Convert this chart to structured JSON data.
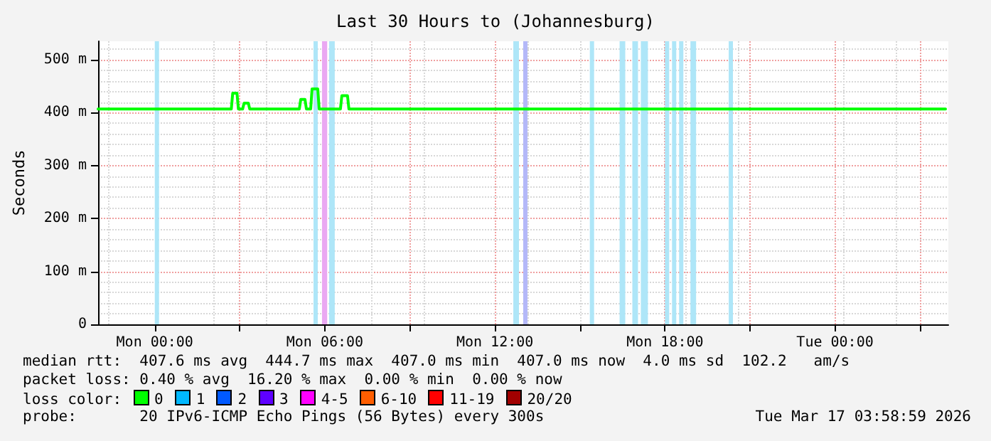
{
  "chart_data": {
    "type": "line",
    "title": "Last 30 Hours to (Johannesburg)",
    "ylabel": "Seconds",
    "xlim": [
      "2026-03-15T22:00",
      "2026-03-17T04:00"
    ],
    "xticks": [
      {
        "value": "2026-03-16T00:00",
        "label": "Mon 00:00"
      },
      {
        "value": "2026-03-16T03:00",
        "label": null
      },
      {
        "value": "2026-03-16T06:00",
        "label": "Mon 06:00"
      },
      {
        "value": "2026-03-16T09:00",
        "label": null
      },
      {
        "value": "2026-03-16T12:00",
        "label": "Mon 12:00"
      },
      {
        "value": "2026-03-16T15:00",
        "label": null
      },
      {
        "value": "2026-03-16T18:00",
        "label": "Mon 18:00"
      },
      {
        "value": "2026-03-16T21:00",
        "label": null
      },
      {
        "value": "2026-03-17T00:00",
        "label": "Tue 00:00"
      },
      {
        "value": "2026-03-17T03:00",
        "label": null
      }
    ],
    "ylim": [
      0,
      535
    ],
    "yticks": [
      0,
      {
        "value": 100,
        "label": "100 m"
      },
      {
        "value": 200,
        "label": "200 m"
      },
      {
        "value": 300,
        "label": "300 m"
      },
      {
        "value": 400,
        "label": "400 m"
      },
      {
        "value": 500,
        "label": "500 m"
      }
    ],
    "grid": true,
    "marker": "none",
    "line_style": "solid",
    "series": [
      {
        "color": "#00ff00",
        "x": [
          "2026-03-15T22:00",
          "2026-03-16T02:42",
          "2026-03-16T02:45",
          "2026-03-16T02:54",
          "2026-03-16T02:57",
          "2026-03-16T03:06",
          "2026-03-16T03:09",
          "2026-03-16T03:18",
          "2026-03-16T03:21",
          "2026-03-16T05:06",
          "2026-03-16T05:09",
          "2026-03-16T05:18",
          "2026-03-16T05:21",
          "2026-03-16T05:30",
          "2026-03-16T05:33",
          "2026-03-16T05:45",
          "2026-03-16T05:48",
          "2026-03-16T06:33",
          "2026-03-16T06:36",
          "2026-03-16T06:48",
          "2026-03-16T06:51",
          "2026-03-17T03:54"
        ],
        "values": [
          407,
          407,
          437,
          437,
          407,
          407,
          418,
          418,
          407,
          407,
          425,
          425,
          407,
          407,
          445,
          445,
          407,
          407,
          432,
          432,
          407,
          407
        ]
      }
    ],
    "bands": [
      {
        "axis": "x",
        "from": "2026-03-16T00:00",
        "to": "2026-03-16T00:09",
        "color": "#aee6f8"
      },
      {
        "axis": "x",
        "from": "2026-03-16T05:36",
        "to": "2026-03-16T05:45",
        "color": "#aee6f8"
      },
      {
        "axis": "x",
        "from": "2026-03-16T05:54",
        "to": "2026-03-16T06:05",
        "color": "#eaa8f2"
      },
      {
        "axis": "x",
        "from": "2026-03-16T06:09",
        "to": "2026-03-16T06:21",
        "color": "#aee6f8"
      },
      {
        "axis": "x",
        "from": "2026-03-16T12:39",
        "to": "2026-03-16T12:51",
        "color": "#aee6f8"
      },
      {
        "axis": "x",
        "from": "2026-03-16T13:00",
        "to": "2026-03-16T13:09",
        "color": "#b4b8f8"
      },
      {
        "axis": "x",
        "from": "2026-03-16T15:21",
        "to": "2026-03-16T15:30",
        "color": "#aee6f8"
      },
      {
        "axis": "x",
        "from": "2026-03-16T16:24",
        "to": "2026-03-16T16:36",
        "color": "#aee6f8"
      },
      {
        "axis": "x",
        "from": "2026-03-16T16:51",
        "to": "2026-03-16T17:03",
        "color": "#aee6f8"
      },
      {
        "axis": "x",
        "from": "2026-03-16T17:09",
        "to": "2026-03-16T17:24",
        "color": "#aee6f8"
      },
      {
        "axis": "x",
        "from": "2026-03-16T18:00",
        "to": "2026-03-16T18:09",
        "color": "#aee6f8"
      },
      {
        "axis": "x",
        "from": "2026-03-16T18:15",
        "to": "2026-03-16T18:24",
        "color": "#aee6f8"
      },
      {
        "axis": "x",
        "from": "2026-03-16T18:30",
        "to": "2026-03-16T18:39",
        "color": "#aee6f8"
      },
      {
        "axis": "x",
        "from": "2026-03-16T18:54",
        "to": "2026-03-16T19:06",
        "color": "#aee6f8"
      },
      {
        "axis": "x",
        "from": "2026-03-16T20:15",
        "to": "2026-03-16T20:24",
        "color": "#aee6f8"
      }
    ],
    "annotations": [
      "median rtt:  407.6 ms avg  444.7 ms max  407.0 ms min  407.0 ms now  4.0 ms sd  102.2   am/s",
      "packet loss: 0.40 % avg  16.20 % max  0.00 % min  0.00 % now",
      "loss color:  0  1  2  3  4-5  6-10  11-19  20/20",
      "probe:       20 IPv6-ICMP Echo Pings (56 Bytes) every 300s",
      "Tue Mar 17 03:58:59 2026"
    ]
  }
}
